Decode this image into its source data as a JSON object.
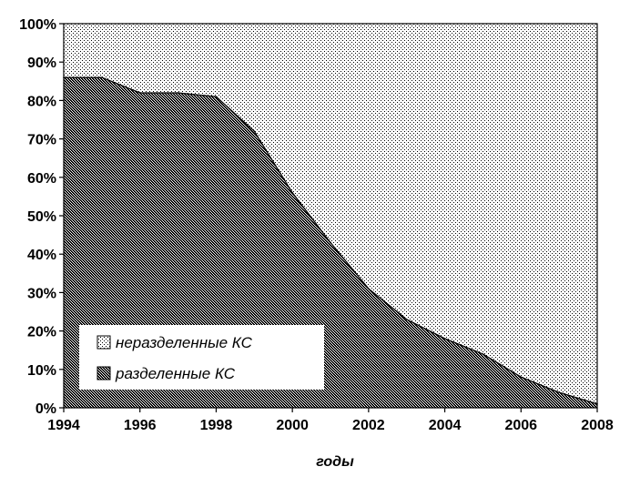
{
  "chart_data": {
    "type": "area",
    "stacked": true,
    "percent_stacked": true,
    "title": "",
    "xlabel": "годы",
    "ylabel": "",
    "x": [
      1994,
      1995,
      1996,
      1997,
      1998,
      1999,
      2000,
      2001,
      2002,
      2003,
      2004,
      2005,
      2006,
      2007,
      2008
    ],
    "xlim": [
      1994,
      2008
    ],
    "ylim": [
      0,
      100
    ],
    "x_ticks": [
      "1994",
      "1996",
      "1998",
      "2000",
      "2002",
      "2004",
      "2006",
      "2008"
    ],
    "y_ticks": [
      "0%",
      "10%",
      "20%",
      "30%",
      "40%",
      "50%",
      "60%",
      "70%",
      "80%",
      "90%",
      "100%"
    ],
    "series": [
      {
        "name": "разделенные КС",
        "values": [
          86,
          86,
          82,
          82,
          81,
          72,
          56,
          43,
          31,
          23,
          18,
          14,
          8,
          4,
          1
        ],
        "fill": "dense-dot-pattern",
        "color": "#000000"
      },
      {
        "name": "неразделенные КС",
        "values": [
          14,
          14,
          18,
          18,
          19,
          28,
          44,
          57,
          69,
          77,
          82,
          86,
          92,
          96,
          99
        ],
        "fill": "sparse-dot-pattern",
        "color": "#000000"
      }
    ],
    "legend": {
      "position": "bottom-left",
      "entries": [
        "неразделенные КС",
        "разделенные КС"
      ]
    },
    "grid": false
  }
}
